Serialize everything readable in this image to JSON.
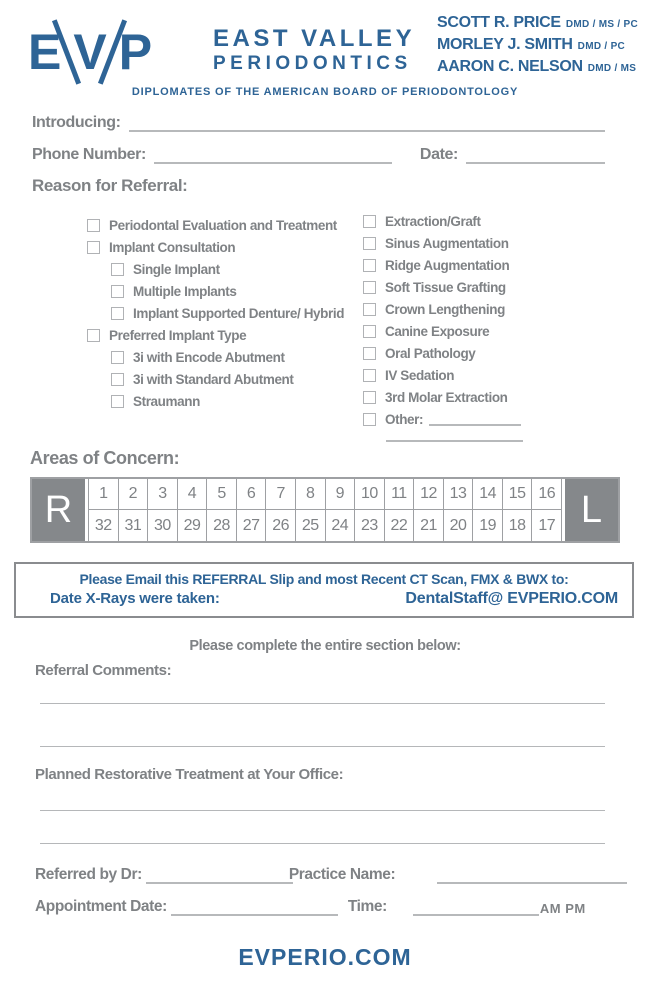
{
  "colors": {
    "brand_blue": "#2E6496",
    "text_gray": "#7F8285",
    "line_gray": "#B7B9BB",
    "rl_block_gray": "#85888B"
  },
  "header": {
    "logo_letters": {
      "e": "E",
      "v": "V",
      "p": "P"
    },
    "practice_name_line1": "EAST VALLEY",
    "practice_name_line2": "PERIODONTICS",
    "doctors": [
      {
        "name": "SCOTT R. PRICE",
        "credentials": "DMD / MS / PC"
      },
      {
        "name": "MORLEY J. SMITH",
        "credentials": "DMD / PC"
      },
      {
        "name": "AARON C. NELSON",
        "credentials": "DMD / MS"
      }
    ],
    "tagline": "DIPLOMATES OF THE AMERICAN BOARD OF PERIODONTOLOGY"
  },
  "intro_fields": {
    "introducing_label": "Introducing:",
    "phone_label": "Phone Number:",
    "date_label": "Date:",
    "reason_label": "Reason for Referral:"
  },
  "reasons": {
    "left": [
      {
        "label": "Periodontal Evaluation and Treatment",
        "indent": false
      },
      {
        "label": "Implant Consultation",
        "indent": false
      },
      {
        "label": "Single Implant",
        "indent": true
      },
      {
        "label": "Multiple Implants",
        "indent": true
      },
      {
        "label": "Implant Supported Denture/ Hybrid",
        "indent": true
      },
      {
        "label": "Preferred Implant Type",
        "indent": false
      },
      {
        "label": "3i with Encode Abutment",
        "indent": true
      },
      {
        "label": "3i with Standard Abutment",
        "indent": true
      },
      {
        "label": "Straumann",
        "indent": true
      }
    ],
    "right": [
      {
        "label": "Extraction/Graft"
      },
      {
        "label": "Sinus Augmentation"
      },
      {
        "label": "Ridge Augmentation"
      },
      {
        "label": "Soft Tissue Grafting"
      },
      {
        "label": "Crown Lengthening"
      },
      {
        "label": "Canine Exposure"
      },
      {
        "label": "Oral Pathology"
      },
      {
        "label": "IV Sedation"
      },
      {
        "label": "3rd Molar Extraction"
      },
      {
        "label": "Other:",
        "write_line": true
      }
    ]
  },
  "areas_of_concern": {
    "label": "Areas of Concern:",
    "left_marker": "R",
    "right_marker": "L",
    "top_row": [
      "1",
      "2",
      "3",
      "4",
      "5",
      "6",
      "7",
      "8",
      "9",
      "10",
      "11",
      "12",
      "13",
      "14",
      "15",
      "16"
    ],
    "bottom_row": [
      "32",
      "31",
      "30",
      "29",
      "28",
      "27",
      "26",
      "25",
      "24",
      "23",
      "22",
      "21",
      "20",
      "19",
      "18",
      "17"
    ]
  },
  "email_box": {
    "line1": "Please Email this REFERRAL Slip and most Recent CT Scan, FMX & BWX to:",
    "xray_label": "Date X-Rays were taken:",
    "email": "DentalStaff@ EVPERIO.COM"
  },
  "bottom_section": {
    "complete_note": "Please complete the entire section below:",
    "referral_comments_label": "Referral Comments:",
    "planned_treatment_label": "Planned Restorative Treatment at Your Office:",
    "referred_by_label": "Referred by Dr:",
    "practice_name_label": "Practice Name:",
    "appointment_date_label": "Appointment Date:",
    "time_label": "Time:",
    "am_pm_label": "AM PM"
  },
  "footer": {
    "website": "EVPERIO.COM"
  }
}
